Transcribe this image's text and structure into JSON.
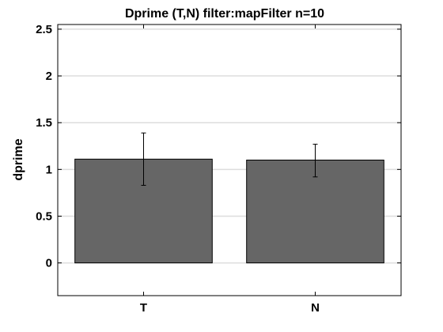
{
  "chart_data": {
    "type": "bar",
    "title": "Dprime (T,N) filter:mapFilter n=10",
    "xlabel": "",
    "ylabel": "dprime",
    "categories": [
      "T",
      "N"
    ],
    "values": [
      1.11,
      1.1
    ],
    "error_low": [
      0.83,
      0.92
    ],
    "error_high": [
      1.39,
      1.27
    ],
    "ylim": [
      -0.35,
      2.55
    ],
    "yticks": [
      0,
      0.5,
      1,
      1.5,
      2,
      2.5
    ],
    "ytick_labels": [
      "0",
      "0.5",
      "1",
      "1.5",
      "2",
      "2.5"
    ],
    "grid": true,
    "bar_color": "#666666",
    "grid_color": "#dddddd"
  }
}
